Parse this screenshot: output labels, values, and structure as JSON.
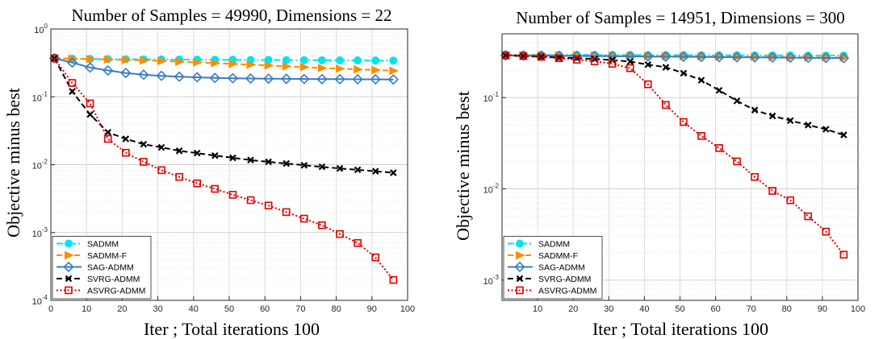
{
  "figure": {
    "x_tick_labels": [
      "0",
      "10",
      "20",
      "30",
      "40",
      "50",
      "60",
      "70",
      "80",
      "90",
      "100"
    ]
  },
  "chart_data": [
    {
      "type": "line",
      "title": "Number of Samples = 49990, Dimensions = 22",
      "xlabel": "Iter ; Total iterations 100",
      "ylabel": "Objective minus best",
      "xlim": [
        0,
        100
      ],
      "ylim": [
        0.0001,
        1
      ],
      "yscale": "log",
      "x_ticks": [
        0,
        10,
        20,
        30,
        40,
        50,
        60,
        70,
        80,
        90,
        100
      ],
      "y_tick_exponents": [
        "0",
        "-1",
        "-2",
        "-3",
        "-4"
      ],
      "grid": true,
      "legend_position": "bottom-left",
      "x": [
        1,
        6,
        11,
        16,
        21,
        26,
        31,
        36,
        41,
        46,
        51,
        56,
        61,
        66,
        71,
        76,
        81,
        86,
        91,
        96
      ],
      "series": [
        {
          "name": "SADMM",
          "color": "#00e5ee",
          "linestyle": "dash-dot",
          "marker": "circle",
          "values": [
            0.37,
            0.365,
            0.362,
            0.36,
            0.358,
            0.356,
            0.355,
            0.354,
            0.353,
            0.352,
            0.351,
            0.35,
            0.349,
            0.348,
            0.347,
            0.346,
            0.345,
            0.344,
            0.343,
            0.342
          ]
        },
        {
          "name": "SADMM-F",
          "color": "#ff8c00",
          "linestyle": "dash",
          "marker": "triangle-right",
          "values": [
            0.37,
            0.365,
            0.36,
            0.355,
            0.35,
            0.345,
            0.338,
            0.33,
            0.322,
            0.314,
            0.306,
            0.298,
            0.29,
            0.282,
            0.274,
            0.266,
            0.26,
            0.254,
            0.248,
            0.242
          ]
        },
        {
          "name": "SAG-ADMM",
          "color": "#3a7cc4",
          "linestyle": "solid",
          "marker": "diamond",
          "values": [
            0.37,
            0.32,
            0.27,
            0.245,
            0.225,
            0.212,
            0.204,
            0.198,
            0.194,
            0.19,
            0.188,
            0.186,
            0.185,
            0.184,
            0.183,
            0.182,
            0.182,
            0.181,
            0.181,
            0.18
          ]
        },
        {
          "name": "SVRG-ADMM",
          "color": "#000000",
          "linestyle": "dash",
          "marker": "x",
          "values": [
            0.37,
            0.12,
            0.055,
            0.03,
            0.024,
            0.02,
            0.018,
            0.016,
            0.0148,
            0.0136,
            0.0126,
            0.0117,
            0.011,
            0.0104,
            0.0098,
            0.0093,
            0.0088,
            0.0084,
            0.008,
            0.0076
          ]
        },
        {
          "name": "ASVRG-ADMM",
          "color": "#e00000",
          "linestyle": "dot",
          "marker": "square",
          "values": [
            0.37,
            0.16,
            0.08,
            0.024,
            0.015,
            0.011,
            0.0083,
            0.0066,
            0.0053,
            0.0044,
            0.0036,
            0.003,
            0.0025,
            0.002,
            0.0016,
            0.00128,
            0.00095,
            0.0007,
            0.00043,
            0.0002
          ]
        }
      ]
    },
    {
      "type": "line",
      "title": "Number of Samples = 14951, Dimensions = 300",
      "xlabel": "Iter ; Total iterations 100",
      "ylabel": "Objective minus best",
      "xlim": [
        0,
        100
      ],
      "ylim": [
        0.0006,
        0.5
      ],
      "yscale": "log",
      "x_ticks": [
        10,
        20,
        30,
        40,
        50,
        60,
        70,
        80,
        90,
        100
      ],
      "y_tick_exponents": [
        "-1",
        "-2",
        "-3"
      ],
      "grid": true,
      "legend_position": "bottom-left",
      "x": [
        1,
        6,
        11,
        16,
        21,
        26,
        31,
        36,
        41,
        46,
        51,
        56,
        61,
        66,
        71,
        76,
        81,
        86,
        91,
        96
      ],
      "series": [
        {
          "name": "SADMM",
          "color": "#00e5ee",
          "linestyle": "dash-dot",
          "marker": "circle",
          "values": [
            0.295,
            0.295,
            0.294,
            0.294,
            0.294,
            0.293,
            0.293,
            0.293,
            0.292,
            0.292,
            0.292,
            0.291,
            0.291,
            0.291,
            0.29,
            0.29,
            0.29,
            0.289,
            0.289,
            0.289
          ]
        },
        {
          "name": "SADMM-F",
          "color": "#ff8c00",
          "linestyle": "dash",
          "marker": "triangle-right",
          "values": [
            0.293,
            0.292,
            0.291,
            0.29,
            0.289,
            0.288,
            0.287,
            0.286,
            0.285,
            0.284,
            0.283,
            0.282,
            0.281,
            0.28,
            0.279,
            0.278,
            0.277,
            0.276,
            0.275,
            0.274
          ]
        },
        {
          "name": "SAG-ADMM",
          "color": "#3a7cc4",
          "linestyle": "solid",
          "marker": "diamond",
          "values": [
            0.29,
            0.289,
            0.288,
            0.287,
            0.286,
            0.285,
            0.284,
            0.283,
            0.282,
            0.281,
            0.28,
            0.279,
            0.278,
            0.277,
            0.276,
            0.275,
            0.274,
            0.273,
            0.272,
            0.271
          ]
        },
        {
          "name": "SVRG-ADMM",
          "color": "#000000",
          "linestyle": "dash",
          "marker": "x",
          "values": [
            0.29,
            0.285,
            0.28,
            0.275,
            0.27,
            0.265,
            0.258,
            0.248,
            0.23,
            0.215,
            0.185,
            0.155,
            0.12,
            0.092,
            0.073,
            0.063,
            0.056,
            0.05,
            0.045,
            0.039
          ]
        },
        {
          "name": "ASVRG-ADMM",
          "color": "#e00000",
          "linestyle": "dot",
          "marker": "square",
          "values": [
            0.29,
            0.285,
            0.28,
            0.27,
            0.26,
            0.25,
            0.235,
            0.21,
            0.14,
            0.083,
            0.054,
            0.038,
            0.028,
            0.02,
            0.0135,
            0.0095,
            0.0075,
            0.005,
            0.0034,
            0.0019
          ]
        }
      ]
    }
  ]
}
